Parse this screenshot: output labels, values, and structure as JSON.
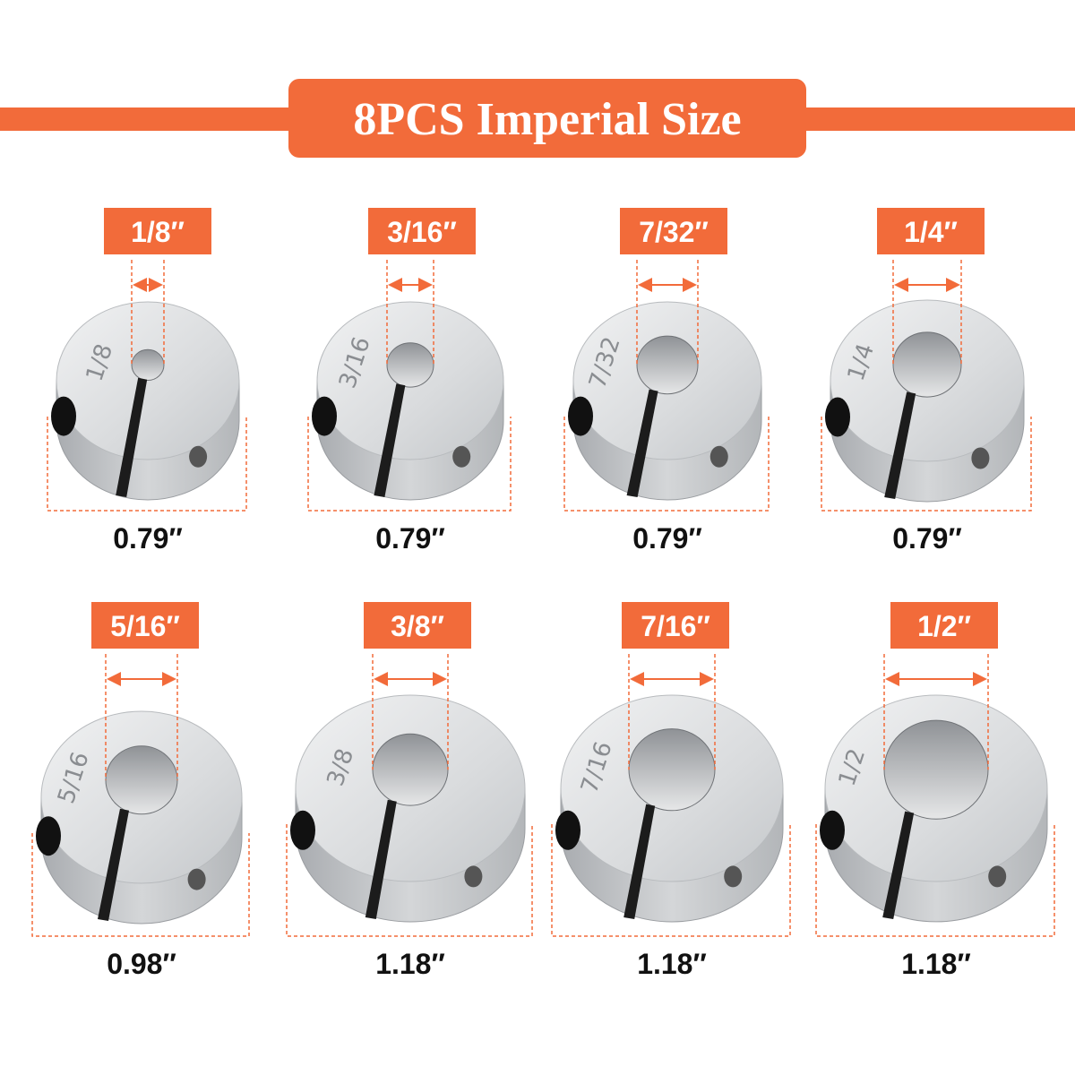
{
  "header": {
    "title": "8PCS Imperial Size"
  },
  "items": [
    {
      "bore": "1/8″",
      "engraving": "1/8",
      "diameter": "0.79″"
    },
    {
      "bore": "3/16″",
      "engraving": "3/16",
      "diameter": "0.79″"
    },
    {
      "bore": "7/32″",
      "engraving": "7/32",
      "diameter": "0.79″"
    },
    {
      "bore": "1/4″",
      "engraving": "1/4",
      "diameter": "0.79″"
    },
    {
      "bore": "5/16″",
      "engraving": "5/16",
      "diameter": "0.98″"
    },
    {
      "bore": "3/8″",
      "engraving": "3/8",
      "diameter": "1.18″"
    },
    {
      "bore": "7/16″",
      "engraving": "7/16",
      "diameter": "1.18″"
    },
    {
      "bore": "1/2″",
      "engraving": "1/2",
      "diameter": "1.18″"
    }
  ]
}
